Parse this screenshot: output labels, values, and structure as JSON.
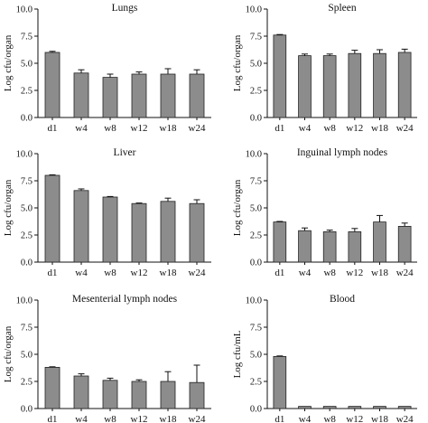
{
  "chart_data": [
    {
      "type": "bar",
      "title": "Lungs",
      "ylabel": "Log cfu/organ",
      "categories": [
        "d1",
        "w4",
        "w8",
        "w12",
        "w18",
        "w24"
      ],
      "values": [
        6.0,
        4.1,
        3.7,
        4.0,
        4.0,
        4.0
      ],
      "errors": [
        0.1,
        0.3,
        0.3,
        0.2,
        0.5,
        0.4
      ],
      "ylim": [
        0,
        10
      ],
      "yticks": [
        "0.0",
        "2.5",
        "5.0",
        "7.5",
        "10.0"
      ]
    },
    {
      "type": "bar",
      "title": "Spleen",
      "ylabel": "Log cfu/organ",
      "categories": [
        "d1",
        "w4",
        "w8",
        "w12",
        "w18",
        "w24"
      ],
      "values": [
        7.6,
        5.7,
        5.7,
        5.9,
        5.9,
        6.0
      ],
      "errors": [
        0.05,
        0.15,
        0.15,
        0.3,
        0.35,
        0.3
      ],
      "ylim": [
        0,
        10
      ],
      "yticks": [
        "0.0",
        "2.5",
        "5.0",
        "7.5",
        "10.0"
      ]
    },
    {
      "type": "bar",
      "title": "Liver",
      "ylabel": "Log cfu/organ",
      "categories": [
        "d1",
        "w4",
        "w8",
        "w12",
        "w18",
        "w24"
      ],
      "values": [
        8.0,
        6.6,
        6.0,
        5.4,
        5.6,
        5.4
      ],
      "errors": [
        0.05,
        0.15,
        0.05,
        0.05,
        0.3,
        0.35
      ],
      "ylim": [
        0,
        10
      ],
      "yticks": [
        "0.0",
        "2.5",
        "5.0",
        "7.5",
        "10.0"
      ]
    },
    {
      "type": "bar",
      "title": "Inguinal lymph nodes",
      "ylabel": "Log cfu/organ",
      "categories": [
        "d1",
        "w4",
        "w8",
        "w12",
        "w18",
        "w24"
      ],
      "values": [
        3.7,
        2.9,
        2.8,
        2.8,
        3.7,
        3.3
      ],
      "errors": [
        0.05,
        0.25,
        0.15,
        0.3,
        0.6,
        0.3
      ],
      "ylim": [
        0,
        10
      ],
      "yticks": [
        "0.0",
        "2.5",
        "5.0",
        "7.5",
        "10.0"
      ]
    },
    {
      "type": "bar",
      "title": "Mesenterial lymph nodes",
      "ylabel": "Log cfu/organ",
      "categories": [
        "d1",
        "w4",
        "w8",
        "w12",
        "w18",
        "w24"
      ],
      "values": [
        3.8,
        3.0,
        2.6,
        2.5,
        2.5,
        2.4
      ],
      "errors": [
        0.05,
        0.2,
        0.2,
        0.15,
        0.9,
        1.6
      ],
      "ylim": [
        0,
        10
      ],
      "yticks": [
        "0.0",
        "2.5",
        "5.0",
        "7.5",
        "10.0"
      ]
    },
    {
      "type": "bar",
      "title": "Blood",
      "ylabel": "Log cfu/mL",
      "categories": [
        "d1",
        "w4",
        "w8",
        "w12",
        "w18",
        "w24"
      ],
      "values": [
        4.8,
        0.2,
        0.2,
        0.2,
        0.2,
        0.2
      ],
      "errors": [
        0.05,
        0,
        0,
        0,
        0,
        0
      ],
      "ylim": [
        0,
        10
      ],
      "yticks": [
        "0.0",
        "2.5",
        "5.0",
        "7.5",
        "10.0"
      ]
    }
  ]
}
